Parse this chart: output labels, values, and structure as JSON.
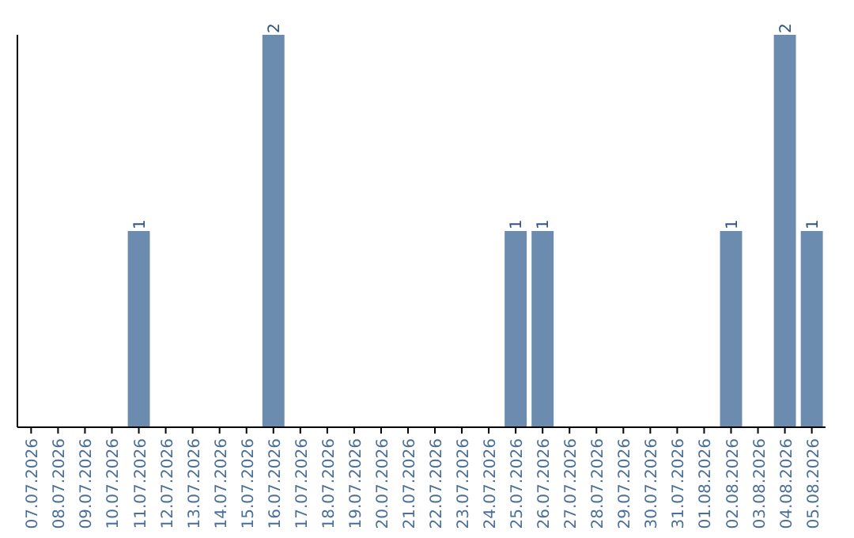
{
  "chart_data": {
    "type": "bar",
    "categories": [
      "07.07.2026",
      "08.07.2026",
      "09.07.2026",
      "10.07.2026",
      "11.07.2026",
      "12.07.2026",
      "13.07.2026",
      "14.07.2026",
      "15.07.2026",
      "16.07.2026",
      "17.07.2026",
      "18.07.2026",
      "19.07.2026",
      "20.07.2026",
      "21.07.2026",
      "22.07.2026",
      "23.07.2026",
      "24.07.2026",
      "25.07.2026",
      "26.07.2026",
      "27.07.2026",
      "28.07.2026",
      "29.07.2026",
      "30.07.2026",
      "31.07.2026",
      "01.08.2026",
      "02.08.2026",
      "03.08.2026",
      "04.08.2026",
      "05.08.2026"
    ],
    "values": [
      0,
      0,
      0,
      0,
      1,
      0,
      0,
      0,
      0,
      2,
      0,
      0,
      0,
      0,
      0,
      0,
      0,
      0,
      1,
      1,
      0,
      0,
      0,
      0,
      0,
      0,
      1,
      0,
      2,
      1
    ],
    "value_labels": [
      null,
      null,
      null,
      null,
      "1",
      null,
      null,
      null,
      null,
      "2",
      null,
      null,
      null,
      null,
      null,
      null,
      null,
      null,
      "1",
      "1",
      null,
      null,
      null,
      null,
      null,
      null,
      "1",
      null,
      "2",
      "1"
    ],
    "color": "#6b8cae",
    "ylim": [
      0,
      2
    ],
    "tick_labels": "x"
  }
}
